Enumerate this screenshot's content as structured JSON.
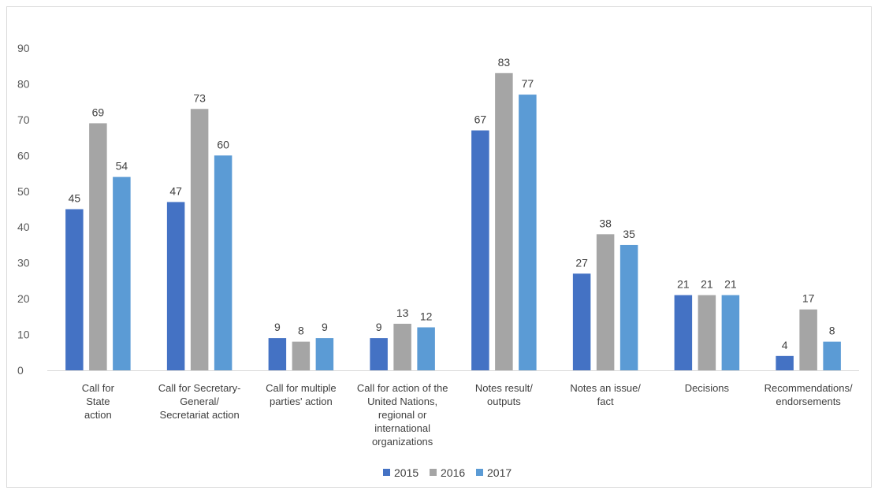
{
  "chart_data": {
    "type": "bar",
    "categories": [
      [
        "Call for",
        "State",
        "action"
      ],
      [
        "Call for Secretary-",
        "General/",
        "Secretariat action"
      ],
      [
        "Call for multiple",
        "parties' action"
      ],
      [
        "Call for action of the",
        "United Nations,",
        "regional or",
        "international",
        "organizations"
      ],
      [
        "Notes result/",
        "outputs"
      ],
      [
        "Notes an issue/",
        "fact"
      ],
      [
        "Decisions"
      ],
      [
        "Recommendations/",
        "endorsements"
      ]
    ],
    "series": [
      {
        "name": "2015",
        "color": "#4472c4",
        "values": [
          45,
          47,
          9,
          9,
          67,
          27,
          21,
          4
        ]
      },
      {
        "name": "2016",
        "color": "#a5a5a5",
        "values": [
          69,
          73,
          8,
          13,
          83,
          38,
          21,
          17
        ]
      },
      {
        "name": "2017",
        "color": "#5b9bd5",
        "values": [
          54,
          60,
          9,
          12,
          77,
          35,
          21,
          8
        ]
      }
    ],
    "ylim": [
      0,
      90
    ],
    "yticks": [
      0,
      10,
      20,
      30,
      40,
      50,
      60,
      70,
      80,
      90
    ],
    "grid": false,
    "legend": "bottom-center"
  }
}
